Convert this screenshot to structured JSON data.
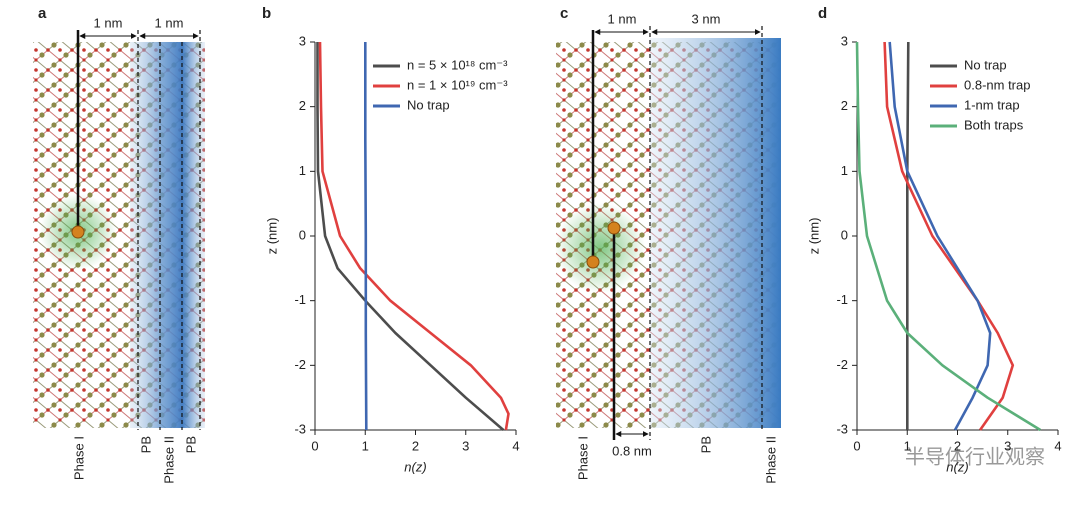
{
  "illustrations": [
    {
      "panel_label": "a",
      "top_labels": [
        "1 nm",
        "1 nm"
      ],
      "bottom_labels": [
        "Phase I",
        "PB",
        "Phase II",
        "PB"
      ]
    },
    {
      "panel_label": "c",
      "top_labels": [
        "1 nm",
        "3 nm"
      ],
      "inner_label": "0.8 nm",
      "bottom_labels": [
        "Phase I",
        "PB",
        "Phase II"
      ]
    }
  ],
  "chart_data": [
    {
      "type": "line",
      "panel_label": "b",
      "x_label": "n(z)",
      "y_label": "z (nm)",
      "xlim": [
        0,
        4
      ],
      "xticks": [
        0,
        1,
        2,
        3,
        4
      ],
      "ylim": [
        -3,
        3
      ],
      "yticks": [
        -3,
        -2,
        -1,
        0,
        1,
        2,
        3
      ],
      "legend": "upper right",
      "series": [
        {
          "name": "n = 5 × 10¹⁸ cm⁻³",
          "color": "#4d4d4d",
          "x": [
            0.05,
            0.05,
            0.06,
            0.2,
            0.45,
            1.0,
            1.6,
            2.3,
            3.0,
            3.75
          ],
          "values": [
            3,
            2,
            1,
            0,
            -0.5,
            -1,
            -1.5,
            -2,
            -2.5,
            -3
          ]
        },
        {
          "name": "n = 1 × 10¹⁹ cm⁻³",
          "color": "#e0403f",
          "x": [
            0.1,
            0.12,
            0.15,
            0.5,
            0.9,
            1.5,
            2.3,
            3.1,
            3.7,
            3.85,
            3.8
          ],
          "values": [
            3,
            2,
            1,
            0,
            -0.5,
            -1,
            -1.5,
            -2,
            -2.5,
            -2.75,
            -3
          ]
        },
        {
          "name": "No trap",
          "color": "#3f67b1",
          "x": [
            1.0,
            1.0,
            1.01,
            1.01,
            1.02
          ],
          "values": [
            3,
            1.5,
            0,
            -1.5,
            -3
          ]
        }
      ]
    },
    {
      "type": "line",
      "panel_label": "d",
      "x_label": "n(z)",
      "y_label": "z (nm)",
      "xlim": [
        0,
        4
      ],
      "xticks": [
        0,
        1,
        2,
        3,
        4
      ],
      "ylim": [
        -3,
        3
      ],
      "yticks": [
        -3,
        -2,
        -1,
        0,
        1,
        2,
        3
      ],
      "legend": "upper right",
      "series": [
        {
          "name": "No trap",
          "color": "#4d4d4d",
          "x": [
            1.02,
            1.01,
            1.0,
            1.0,
            1.0,
            1.0
          ],
          "values": [
            3,
            2,
            1,
            0,
            -1,
            -3
          ]
        },
        {
          "name": "0.8-nm trap",
          "color": "#e0403f",
          "x": [
            0.55,
            0.6,
            0.9,
            1.5,
            2.4,
            2.8,
            3.1,
            2.9,
            2.45
          ],
          "values": [
            3,
            2,
            1,
            0,
            -1,
            -1.5,
            -2,
            -2.5,
            -3
          ]
        },
        {
          "name": "1-nm trap",
          "color": "#3f67b1",
          "x": [
            0.65,
            0.75,
            1.0,
            1.6,
            2.4,
            2.65,
            2.6,
            2.3,
            1.95
          ],
          "values": [
            3,
            2,
            1,
            0,
            -1,
            -1.5,
            -2,
            -2.5,
            -3
          ]
        },
        {
          "name": "Both traps",
          "color": "#5bb07a",
          "x": [
            0.0,
            0.02,
            0.05,
            0.2,
            0.6,
            1.0,
            1.7,
            2.6,
            3.65
          ],
          "values": [
            3,
            2,
            1,
            0,
            -1,
            -1.5,
            -2,
            -2.5,
            -3
          ]
        }
      ]
    }
  ],
  "watermark": "半导体行业观察"
}
